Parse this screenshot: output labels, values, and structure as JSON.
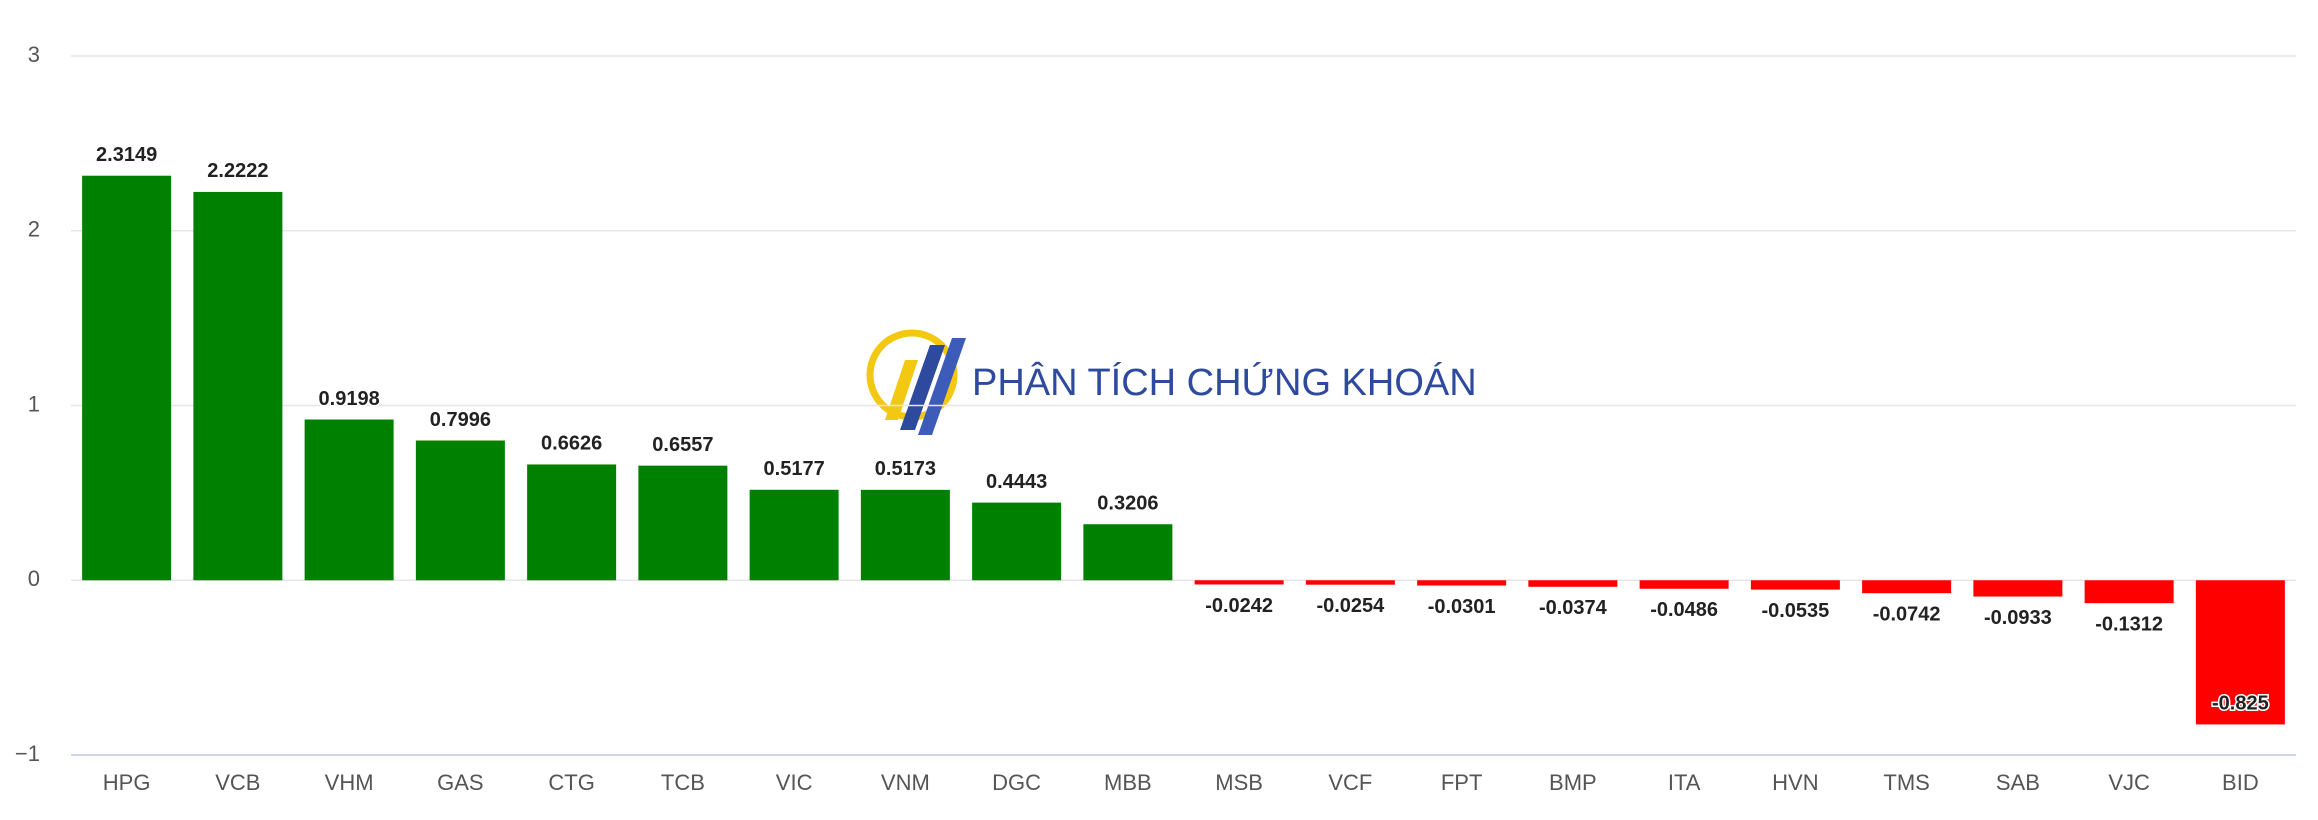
{
  "chart_data": {
    "type": "bar",
    "watermark": "PHÂN TÍCH CHỨNG KHOÁN",
    "categories": [
      "HPG",
      "VCB",
      "VHM",
      "GAS",
      "CTG",
      "TCB",
      "VIC",
      "VNM",
      "DGC",
      "MBB",
      "MSB",
      "VCF",
      "FPT",
      "BMP",
      "ITA",
      "HVN",
      "TMS",
      "SAB",
      "VJC",
      "BID"
    ],
    "values": [
      2.3149,
      2.2222,
      0.9198,
      0.7996,
      0.6626,
      0.6557,
      0.5177,
      0.5173,
      0.4443,
      0.3206,
      -0.0242,
      -0.0254,
      -0.0301,
      -0.0374,
      -0.0486,
      -0.0535,
      -0.0742,
      -0.0933,
      -0.1312,
      -0.825
    ],
    "positive_color": "#008000",
    "negative_color": "#ff0000",
    "ylim": [
      -1,
      3.05
    ],
    "yticks": [
      {
        "value": -1,
        "label": "−1"
      },
      0,
      1,
      2,
      3
    ],
    "grid": true
  }
}
